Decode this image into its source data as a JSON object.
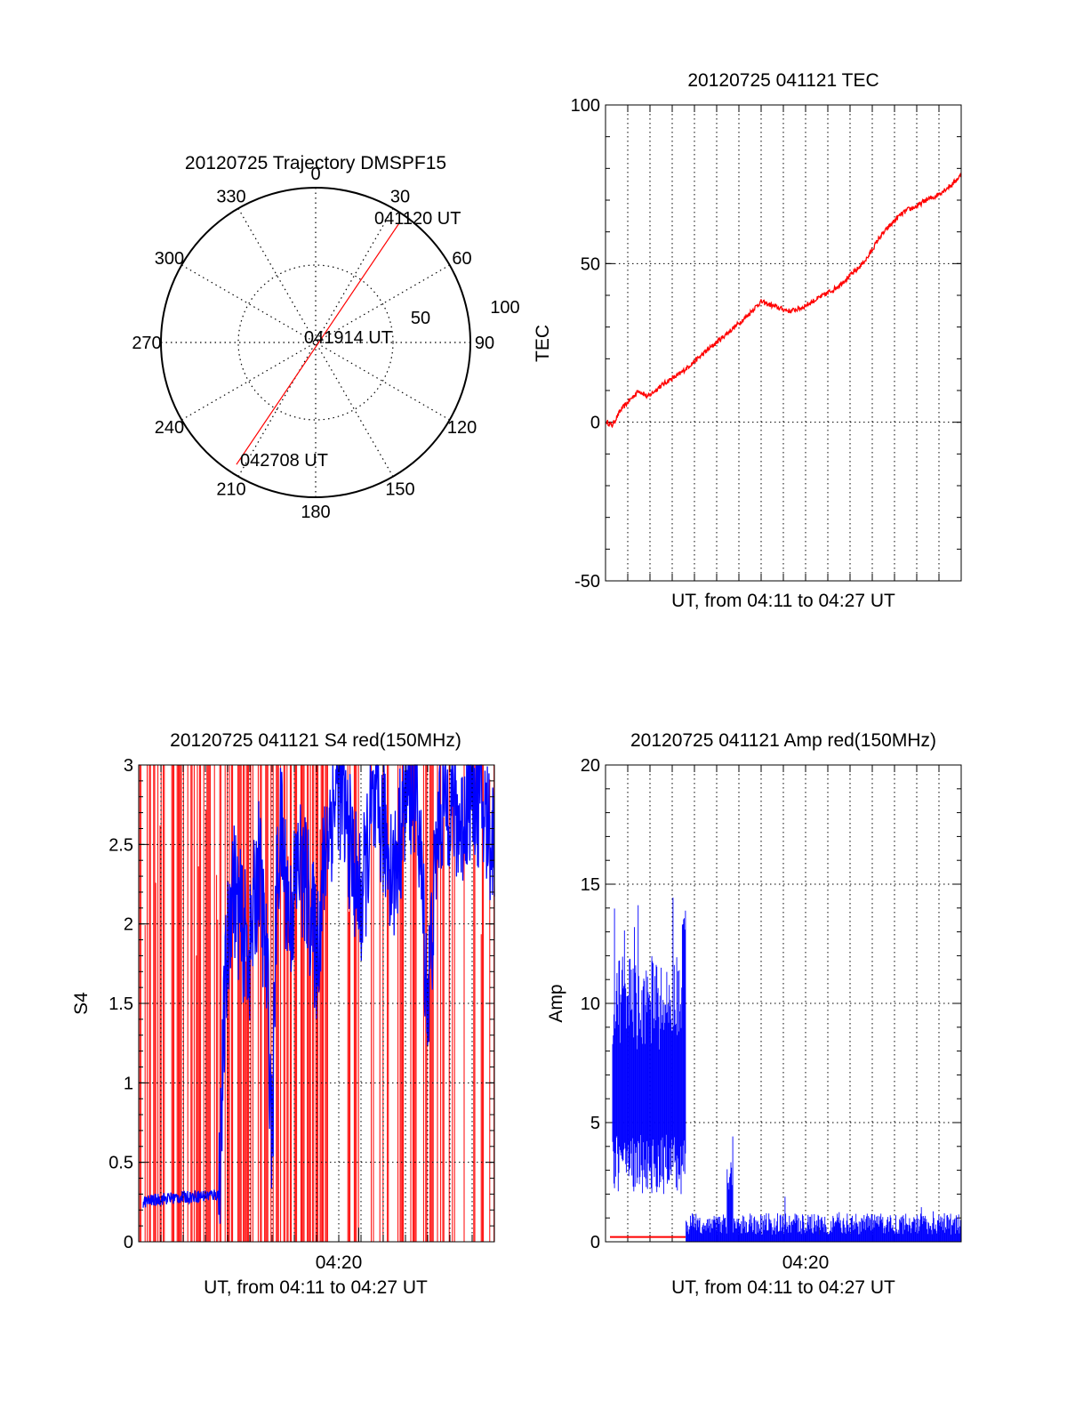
{
  "colors": {
    "red": "#ff0000",
    "blue": "#0000ff",
    "axis": "#000000",
    "grid": "#000000"
  },
  "chart_data": [
    {
      "id": "trajectory",
      "type": "polar",
      "title": "20120725 Trajectory DMSPF15",
      "angle_labels": [
        "0",
        "30",
        "60",
        "90",
        "120",
        "150",
        "180",
        "210",
        "240",
        "270",
        "300",
        "330"
      ],
      "radial_labels": [
        "50",
        "100"
      ],
      "rlim": [
        0,
        100
      ],
      "grid": true,
      "track": {
        "start": {
          "az": 35,
          "r": 95,
          "label": "041120 UT"
        },
        "mid": {
          "az": 0,
          "r": 0,
          "label": "041914 UT"
        },
        "end": {
          "az": 213,
          "r": 94,
          "label": "042708 UT"
        },
        "color": "#ff0000"
      }
    },
    {
      "id": "tec",
      "type": "line",
      "title": "20120725 041121 TEC",
      "xlabel": "UT, from 04:11 to 04:27 UT",
      "ylabel": "TEC",
      "xlim": [
        0,
        16
      ],
      "ylim": [
        -50,
        100
      ],
      "yticks": [
        "100",
        "50",
        "0",
        "-50"
      ],
      "grid": true,
      "series": [
        {
          "color": "#ff0000",
          "x": [
            0.05,
            0.3,
            0.7,
            1.1,
            1.5,
            1.9,
            2.4,
            2.8,
            3.3,
            3.8,
            4.3,
            4.8,
            5.3,
            5.8,
            6.3,
            6.7,
            7.0,
            7.4,
            7.8,
            8.3,
            8.8,
            9.3,
            9.8,
            10.3,
            10.8,
            11.3,
            11.8,
            12.3,
            12.8,
            13.2,
            13.6,
            14.0,
            14.4,
            14.8,
            15.2,
            15.6,
            16.0
          ],
          "y": [
            0,
            -1,
            4,
            7,
            10,
            8,
            11,
            13,
            15,
            18,
            21,
            24,
            27,
            30,
            33,
            36,
            38,
            37,
            36,
            35,
            36,
            38,
            40,
            42,
            45,
            48,
            52,
            58,
            62,
            65,
            67,
            68,
            70,
            71,
            73,
            75,
            78
          ]
        }
      ]
    },
    {
      "id": "s4",
      "type": "line",
      "title": "20120725 041121 S4 red(150MHz)",
      "xlabel": "UT, from 04:11 to 04:27 UT",
      "ylabel": "S4",
      "xlim": [
        0,
        16
      ],
      "ylim": [
        0,
        3
      ],
      "xticks": [
        {
          "value": 9.9,
          "label": "04:20"
        }
      ],
      "yticks": [
        "3",
        "2.5",
        "2",
        "1.5",
        "1",
        "0.5",
        "0"
      ],
      "grid": true,
      "series": [
        {
          "color": "#ff0000",
          "style": "saturated spikes 0–3 throughout"
        },
        {
          "color": "#0000ff",
          "x": [
            0.2,
            1.0,
            2.0,
            3.0,
            3.6,
            3.9,
            4.2,
            4.6,
            5.0,
            5.4,
            5.8,
            6.0,
            6.2,
            6.4,
            6.8,
            7.2,
            7.6,
            8.0,
            8.5,
            9.0,
            9.5,
            10.0,
            10.5,
            11.0,
            11.5,
            12.0,
            12.5,
            13.0,
            13.5,
            14.0,
            14.5,
            15.0,
            15.5,
            16.0
          ],
          "y": [
            0.25,
            0.27,
            0.28,
            0.29,
            0.3,
            1.6,
            2.3,
            2.0,
            1.8,
            2.4,
            1.6,
            0.6,
            2.2,
            2.6,
            2.0,
            2.4,
            2.2,
            1.8,
            2.6,
            2.9,
            2.5,
            2.1,
            2.7,
            2.6,
            2.3,
            2.8,
            2.9,
            1.5,
            2.7,
            2.8,
            2.6,
            2.9,
            2.7,
            2.5
          ]
        }
      ]
    },
    {
      "id": "amp",
      "type": "line",
      "title": "20120725 041121 Amp red(150MHz)",
      "xlabel": "UT, from 04:11 to 04:27 UT",
      "ylabel": "Amp",
      "xlim": [
        0,
        16
      ],
      "ylim": [
        0,
        20
      ],
      "xticks": [
        {
          "value": 9.6,
          "label": "04:20"
        }
      ],
      "yticks": [
        "20",
        "15",
        "10",
        "5",
        "0"
      ],
      "grid": true,
      "series": [
        {
          "color": "#ff0000",
          "x": [
            0.2,
            3.6
          ],
          "y": [
            0.2,
            0.2
          ]
        },
        {
          "color": "#0000ff",
          "style": "noisy band: 2–15 before 3.6, 0–1.5 after, spike ~4.5 at 5.6"
        }
      ]
    }
  ]
}
